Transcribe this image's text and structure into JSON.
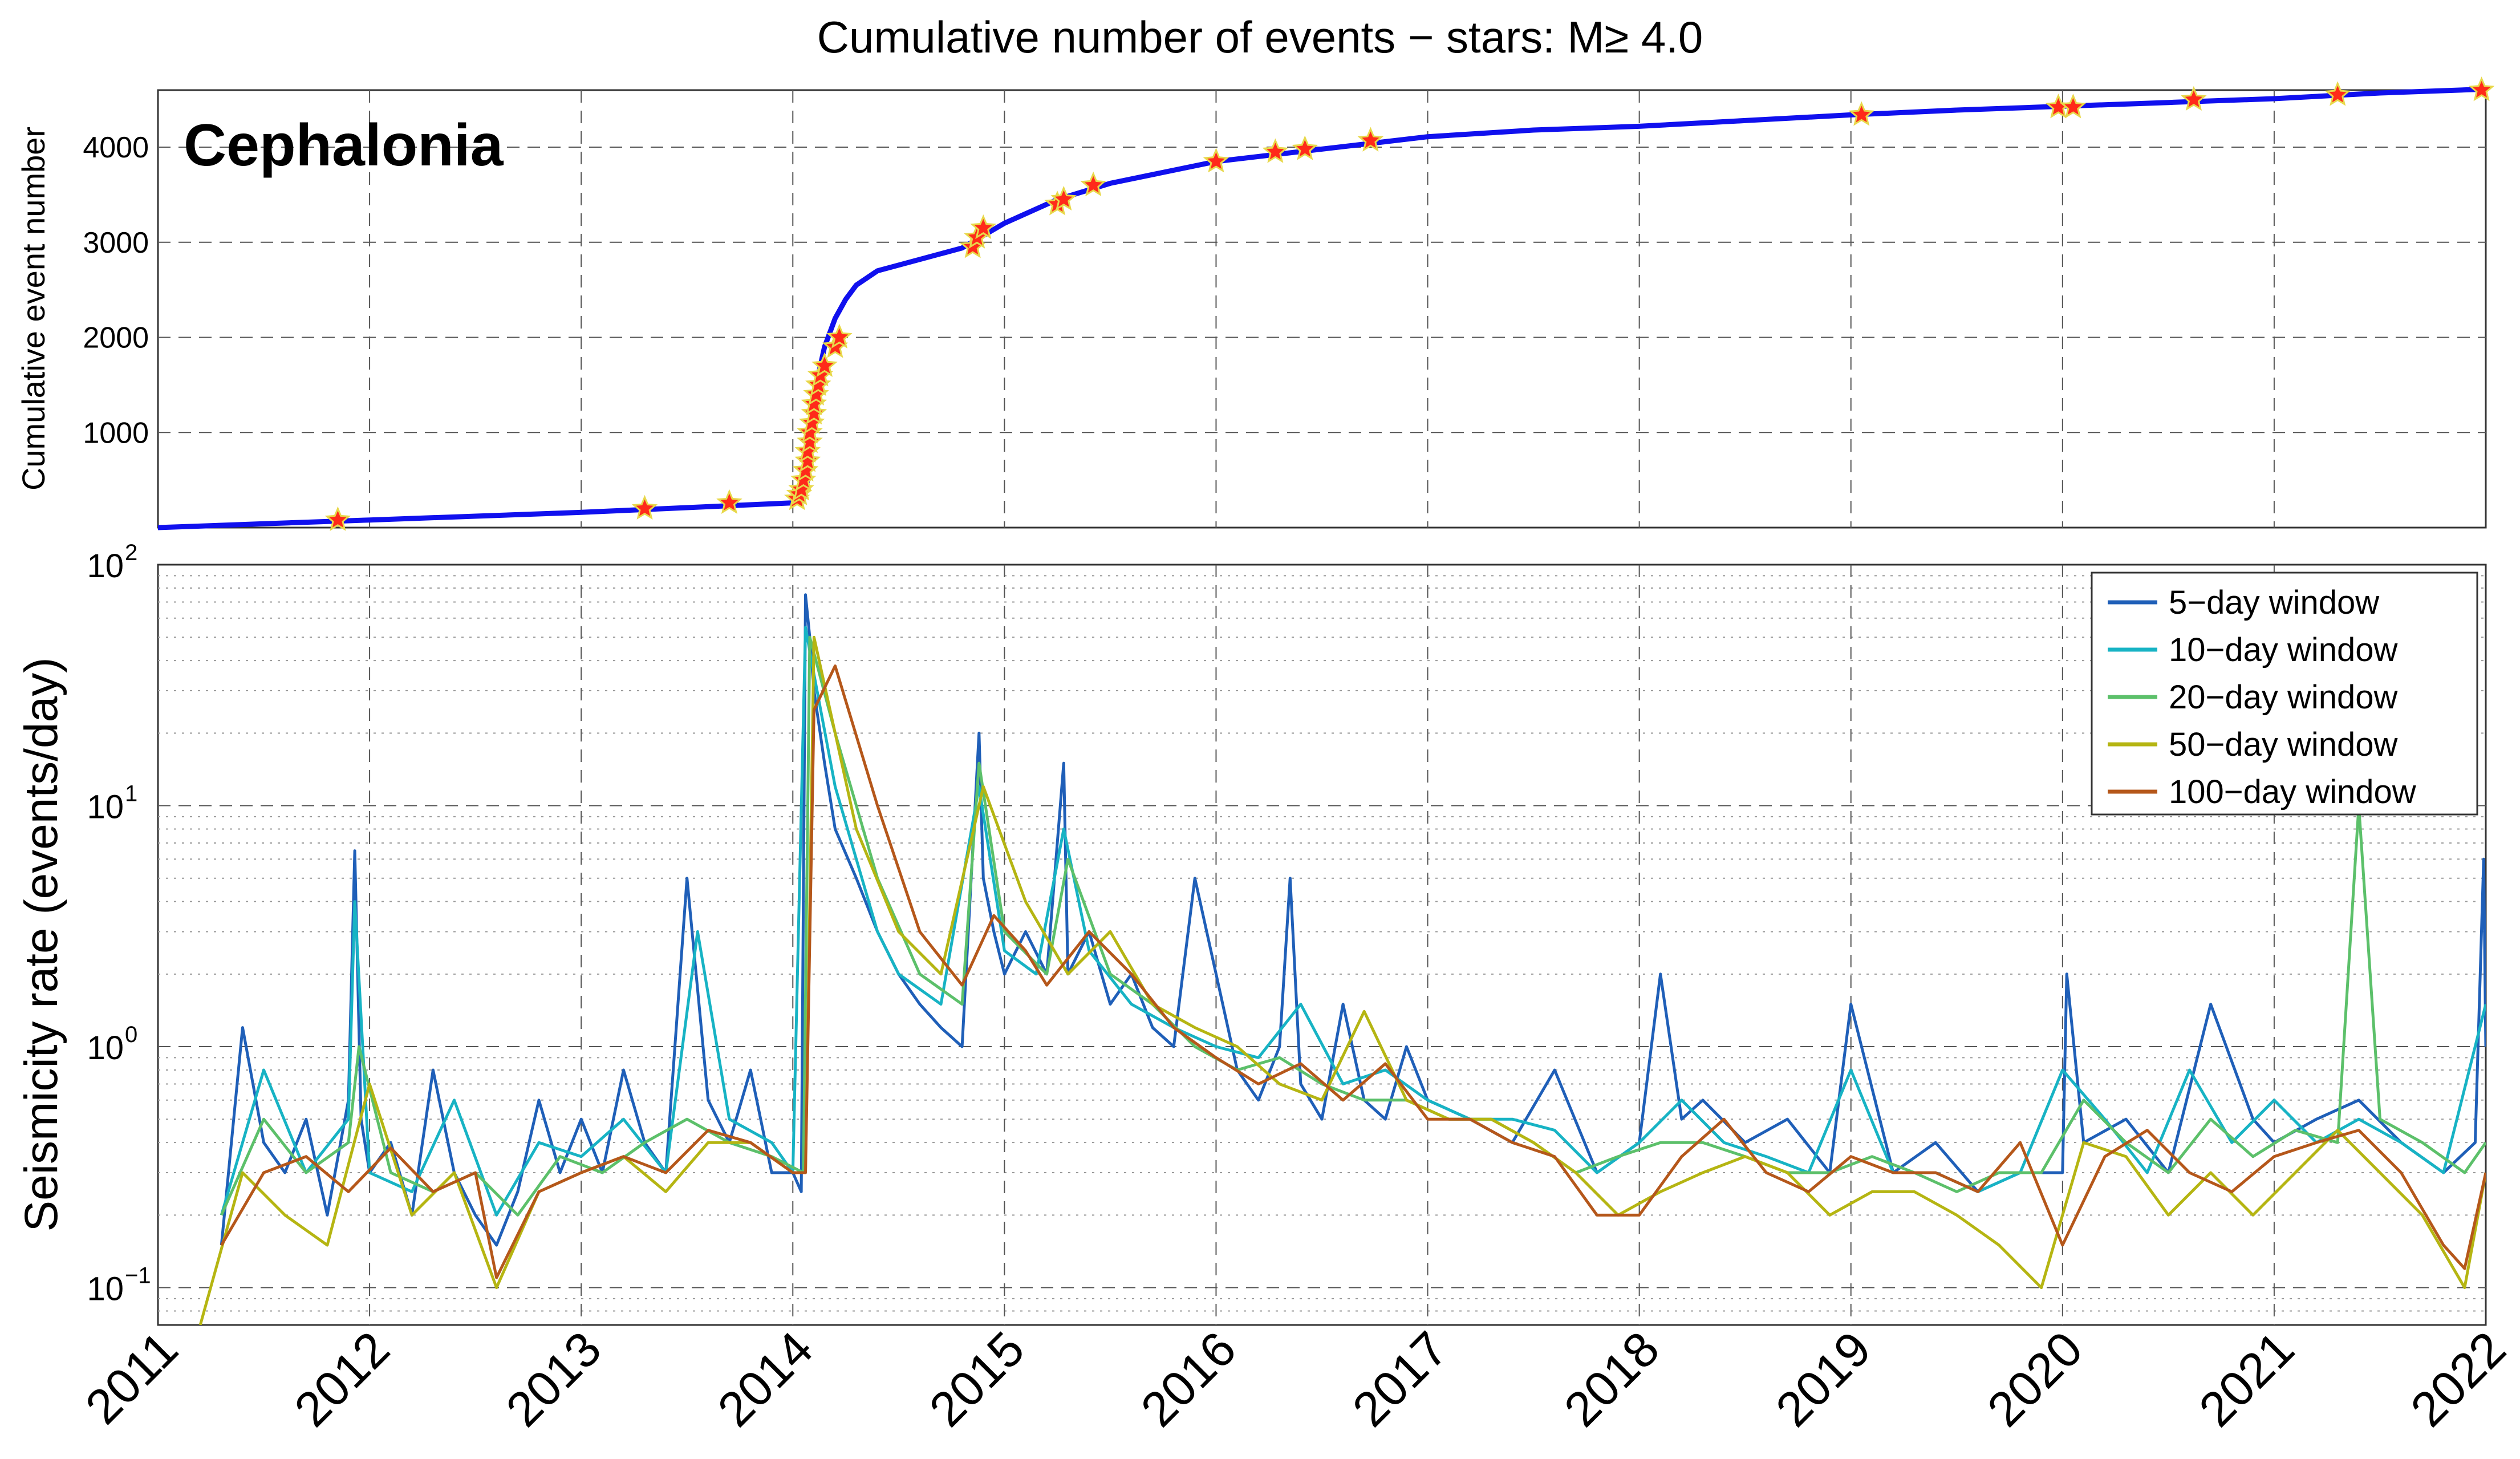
{
  "figure": {
    "title": "Cumulative number of events − stars: M≥ 4.0"
  },
  "x_axis": {
    "ticks": [
      "2011",
      "2012",
      "2013",
      "2014",
      "2015",
      "2016",
      "2017",
      "2018",
      "2019",
      "2020",
      "2021",
      "2022"
    ],
    "range": [
      2011,
      2022
    ]
  },
  "chart_data": [
    {
      "type": "line",
      "title": "Cumulative number of events − stars: M≥ 4.0",
      "annotation": "Cephalonia",
      "ylabel": "Cumulative event number",
      "xlabel": "",
      "xlim": [
        2011,
        2022
      ],
      "ylim": [
        0,
        4600
      ],
      "yticks": [
        1000,
        2000,
        3000,
        4000
      ],
      "grid": true,
      "series": [
        {
          "color": "#1010ee",
          "x": [
            2011.0,
            2011.5,
            2012.0,
            2012.5,
            2013.0,
            2013.5,
            2014.0,
            2014.05,
            2014.07,
            2014.08,
            2014.1,
            2014.12,
            2014.15,
            2014.2,
            2014.25,
            2014.3,
            2014.4,
            2014.6,
            2014.8,
            2015.0,
            2015.25,
            2015.5,
            2016.0,
            2016.5,
            2017.0,
            2017.5,
            2018.0,
            2018.5,
            2019.0,
            2019.5,
            2020.0,
            2020.5,
            2021.0,
            2021.5,
            2022.0
          ],
          "y": [
            0,
            40,
            80,
            120,
            160,
            210,
            260,
            300,
            500,
            900,
            1300,
            1600,
            1900,
            2200,
            2400,
            2550,
            2700,
            2820,
            2940,
            3200,
            3450,
            3620,
            3850,
            3980,
            4110,
            4180,
            4220,
            4280,
            4340,
            4390,
            4430,
            4470,
            4510,
            4570,
            4610
          ]
        }
      ],
      "stars": {
        "color": "#ff2a1a",
        "edge_color": "#e8d84a",
        "x": [
          2011.85,
          2013.3,
          2013.7,
          2014.02,
          2014.03,
          2014.04,
          2014.05,
          2014.06,
          2014.07,
          2014.07,
          2014.08,
          2014.08,
          2014.09,
          2014.1,
          2014.1,
          2014.11,
          2014.12,
          2014.13,
          2014.15,
          2014.2,
          2014.22,
          2014.85,
          2014.87,
          2014.9,
          2015.25,
          2015.28,
          2015.42,
          2016.0,
          2016.28,
          2016.42,
          2016.73,
          2019.05,
          2019.98,
          2020.05,
          2020.62,
          2021.3,
          2021.98
        ],
        "y": [
          80,
          200,
          260,
          300,
          350,
          400,
          500,
          600,
          700,
          800,
          900,
          1000,
          1100,
          1200,
          1300,
          1400,
          1500,
          1600,
          1700,
          1900,
          2000,
          2950,
          3050,
          3150,
          3400,
          3450,
          3600,
          3850,
          3950,
          3980,
          4070,
          4340,
          4420,
          4420,
          4500,
          4550,
          4600
        ]
      }
    },
    {
      "type": "line",
      "ylabel": "Seismicity rate (events/day)",
      "xlabel": "",
      "yscale": "log",
      "xlim": [
        2011,
        2022
      ],
      "ylim": [
        0.07,
        100
      ],
      "yticks": [
        {
          "base": "10",
          "exp": "−1"
        },
        {
          "base": "10",
          "exp": "0"
        },
        {
          "base": "10",
          "exp": "1"
        },
        {
          "base": "10",
          "exp": "2"
        }
      ],
      "legend_position": "top-right",
      "grid": true,
      "series": [
        {
          "name": "5−day window",
          "color": "#1f5fb8",
          "x": [
            2011.3,
            2011.4,
            2011.5,
            2011.6,
            2011.7,
            2011.8,
            2011.9,
            2011.93,
            2011.96,
            2012.0,
            2012.1,
            2012.2,
            2012.3,
            2012.4,
            2012.5,
            2012.6,
            2012.7,
            2012.8,
            2012.9,
            2013.0,
            2013.1,
            2013.2,
            2013.3,
            2013.4,
            2013.5,
            2013.6,
            2013.7,
            2013.8,
            2013.9,
            2014.0,
            2014.04,
            2014.06,
            2014.08,
            2014.1,
            2014.15,
            2014.2,
            2014.3,
            2014.4,
            2014.5,
            2014.6,
            2014.7,
            2014.8,
            2014.88,
            2014.9,
            2014.95,
            2015.0,
            2015.1,
            2015.2,
            2015.28,
            2015.3,
            2015.4,
            2015.5,
            2015.6,
            2015.7,
            2015.8,
            2015.9,
            2016.0,
            2016.1,
            2016.2,
            2016.3,
            2016.35,
            2016.4,
            2016.5,
            2016.6,
            2016.7,
            2016.8,
            2016.9,
            2017.0,
            2017.2,
            2017.4,
            2017.6,
            2017.8,
            2018.0,
            2018.1,
            2018.2,
            2018.3,
            2018.5,
            2018.7,
            2018.9,
            2019.0,
            2019.2,
            2019.4,
            2019.6,
            2019.8,
            2020.0,
            2020.02,
            2020.1,
            2020.3,
            2020.5,
            2020.7,
            2020.9,
            2021.0,
            2021.2,
            2021.4,
            2021.6,
            2021.8,
            2021.95,
            2021.99,
            2022.0
          ],
          "y": [
            0.15,
            1.2,
            0.4,
            0.3,
            0.5,
            0.2,
            0.6,
            6.5,
            0.5,
            0.3,
            0.4,
            0.2,
            0.8,
            0.3,
            0.2,
            0.15,
            0.25,
            0.6,
            0.3,
            0.5,
            0.3,
            0.8,
            0.4,
            0.3,
            5.0,
            0.6,
            0.4,
            0.8,
            0.3,
            0.3,
            0.25,
            75,
            50,
            30,
            15,
            8,
            5,
            3,
            2,
            1.5,
            1.2,
            1,
            20,
            5,
            3,
            2,
            3,
            2,
            15,
            2,
            3,
            1.5,
            2,
            1.2,
            1,
            5,
            2,
            0.8,
            0.6,
            1,
            5,
            0.7,
            0.5,
            1.5,
            0.6,
            0.5,
            1,
            0.6,
            0.5,
            0.4,
            0.8,
            0.3,
            0.4,
            2,
            0.5,
            0.6,
            0.4,
            0.5,
            0.3,
            1.5,
            0.3,
            0.4,
            0.25,
            0.3,
            0.3,
            2,
            0.4,
            0.5,
            0.3,
            1.5,
            0.5,
            0.4,
            0.5,
            0.6,
            0.4,
            0.3,
            0.4,
            6.0,
            1.0
          ]
        },
        {
          "name": "10−day window",
          "color": "#17b3c4",
          "x": [
            2011.3,
            2011.5,
            2011.7,
            2011.9,
            2011.93,
            2012.0,
            2012.2,
            2012.4,
            2012.6,
            2012.8,
            2013.0,
            2013.2,
            2013.4,
            2013.55,
            2013.7,
            2013.9,
            2014.0,
            2014.06,
            2014.1,
            2014.2,
            2014.3,
            2014.4,
            2014.5,
            2014.7,
            2014.88,
            2015.0,
            2015.15,
            2015.28,
            2015.4,
            2015.6,
            2015.8,
            2016.0,
            2016.2,
            2016.4,
            2016.6,
            2016.8,
            2017.0,
            2017.2,
            2017.4,
            2017.6,
            2017.8,
            2018.0,
            2018.2,
            2018.4,
            2018.6,
            2018.8,
            2019.0,
            2019.2,
            2019.4,
            2019.6,
            2019.8,
            2020.0,
            2020.2,
            2020.4,
            2020.6,
            2020.8,
            2021.0,
            2021.2,
            2021.4,
            2021.6,
            2021.8,
            2022.0
          ],
          "y": [
            0.2,
            0.8,
            0.3,
            0.5,
            4.0,
            0.3,
            0.25,
            0.6,
            0.2,
            0.4,
            0.35,
            0.5,
            0.3,
            3.0,
            0.5,
            0.4,
            0.3,
            55,
            35,
            12,
            6,
            3,
            2,
            1.5,
            12,
            2.5,
            2,
            8,
            2.5,
            1.5,
            1.2,
            1,
            0.9,
            1.5,
            0.7,
            0.8,
            0.6,
            0.5,
            0.5,
            0.45,
            0.3,
            0.4,
            0.6,
            0.4,
            0.35,
            0.3,
            0.8,
            0.3,
            0.3,
            0.25,
            0.3,
            0.8,
            0.5,
            0.3,
            0.8,
            0.4,
            0.6,
            0.4,
            0.5,
            0.4,
            0.3,
            1.5
          ]
        },
        {
          "name": "20−day window",
          "color": "#5cc06a",
          "x": [
            2011.3,
            2011.5,
            2011.7,
            2011.9,
            2011.95,
            2012.1,
            2012.3,
            2012.5,
            2012.7,
            2012.9,
            2013.1,
            2013.3,
            2013.5,
            2013.7,
            2013.9,
            2014.05,
            2014.08,
            2014.2,
            2014.4,
            2014.6,
            2014.8,
            2014.88,
            2015.0,
            2015.2,
            2015.3,
            2015.5,
            2015.7,
            2015.9,
            2016.1,
            2016.3,
            2016.5,
            2016.7,
            2016.9,
            2017.1,
            2017.3,
            2017.5,
            2017.7,
            2017.9,
            2018.1,
            2018.3,
            2018.5,
            2018.7,
            2018.9,
            2019.1,
            2019.3,
            2019.5,
            2019.7,
            2019.9,
            2020.1,
            2020.3,
            2020.5,
            2020.7,
            2020.9,
            2021.1,
            2021.3,
            2021.4,
            2021.5,
            2021.7,
            2021.9,
            2022.0
          ],
          "y": [
            0.2,
            0.5,
            0.3,
            0.4,
            1.0,
            0.3,
            0.25,
            0.3,
            0.2,
            0.35,
            0.3,
            0.4,
            0.5,
            0.4,
            0.35,
            0.3,
            50,
            20,
            5,
            2,
            1.5,
            15,
            3,
            2,
            6,
            2,
            1.5,
            1,
            0.8,
            0.9,
            0.7,
            0.6,
            0.6,
            0.5,
            0.5,
            0.4,
            0.3,
            0.35,
            0.4,
            0.4,
            0.35,
            0.3,
            0.3,
            0.35,
            0.3,
            0.25,
            0.3,
            0.3,
            0.6,
            0.4,
            0.3,
            0.5,
            0.35,
            0.45,
            0.4,
            10,
            0.5,
            0.4,
            0.3,
            0.4
          ]
        },
        {
          "name": "50−day window",
          "color": "#b5b512",
          "x": [
            2011.2,
            2011.4,
            2011.6,
            2011.8,
            2012.0,
            2012.2,
            2012.4,
            2012.6,
            2012.8,
            2013.0,
            2013.2,
            2013.4,
            2013.6,
            2013.8,
            2014.0,
            2014.06,
            2014.1,
            2014.3,
            2014.5,
            2014.7,
            2014.9,
            2015.1,
            2015.3,
            2015.5,
            2015.7,
            2015.9,
            2016.1,
            2016.3,
            2016.5,
            2016.7,
            2016.9,
            2017.1,
            2017.3,
            2017.5,
            2017.7,
            2017.9,
            2018.1,
            2018.3,
            2018.5,
            2018.7,
            2018.9,
            2019.1,
            2019.3,
            2019.5,
            2019.7,
            2019.9,
            2020.1,
            2020.3,
            2020.5,
            2020.7,
            2020.9,
            2021.1,
            2021.3,
            2021.5,
            2021.7,
            2021.9,
            2022.0
          ],
          "y": [
            0.07,
            0.3,
            0.2,
            0.15,
            0.7,
            0.2,
            0.3,
            0.1,
            0.25,
            0.3,
            0.35,
            0.25,
            0.4,
            0.4,
            0.3,
            0.3,
            50,
            8,
            3,
            2,
            12,
            4,
            2,
            3,
            1.5,
            1.2,
            1,
            0.7,
            0.6,
            1.4,
            0.6,
            0.5,
            0.5,
            0.4,
            0.3,
            0.2,
            0.25,
            0.3,
            0.35,
            0.3,
            0.2,
            0.25,
            0.25,
            0.2,
            0.15,
            0.1,
            0.4,
            0.35,
            0.2,
            0.3,
            0.2,
            0.3,
            0.45,
            0.3,
            0.2,
            0.1,
            0.3
          ]
        },
        {
          "name": "100−day window",
          "color": "#b5571a",
          "x": [
            2011.3,
            2011.5,
            2011.7,
            2011.9,
            2012.1,
            2012.3,
            2012.5,
            2012.6,
            2012.8,
            2013.0,
            2013.2,
            2013.4,
            2013.6,
            2013.8,
            2014.0,
            2014.06,
            2014.1,
            2014.2,
            2014.4,
            2014.6,
            2014.8,
            2014.95,
            2015.1,
            2015.2,
            2015.4,
            2015.6,
            2015.8,
            2016.0,
            2016.2,
            2016.4,
            2016.6,
            2016.8,
            2017.0,
            2017.2,
            2017.4,
            2017.6,
            2017.8,
            2018.0,
            2018.2,
            2018.4,
            2018.6,
            2018.8,
            2019.0,
            2019.2,
            2019.4,
            2019.6,
            2019.8,
            2020.0,
            2020.2,
            2020.4,
            2020.6,
            2020.8,
            2021.0,
            2021.2,
            2021.4,
            2021.6,
            2021.8,
            2021.9,
            2022.0
          ],
          "y": [
            0.15,
            0.3,
            0.35,
            0.25,
            0.38,
            0.25,
            0.3,
            0.11,
            0.25,
            0.3,
            0.35,
            0.3,
            0.45,
            0.4,
            0.3,
            0.3,
            25,
            38,
            10,
            3,
            1.8,
            3.5,
            2.5,
            1.8,
            3.0,
            2.0,
            1.2,
            0.9,
            0.7,
            0.85,
            0.6,
            0.85,
            0.5,
            0.5,
            0.4,
            0.35,
            0.2,
            0.2,
            0.35,
            0.5,
            0.3,
            0.25,
            0.35,
            0.3,
            0.3,
            0.25,
            0.4,
            0.15,
            0.35,
            0.45,
            0.3,
            0.25,
            0.35,
            0.4,
            0.45,
            0.3,
            0.15,
            0.12,
            0.3
          ]
        }
      ]
    }
  ]
}
